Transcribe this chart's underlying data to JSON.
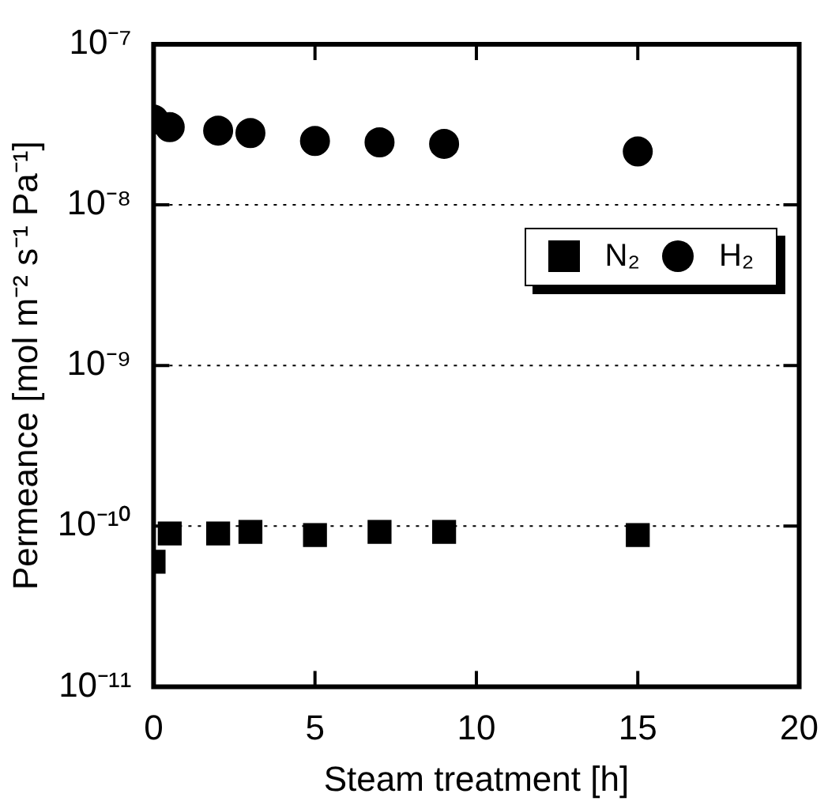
{
  "chart_data": {
    "type": "scatter",
    "xlabel": "Steam treatment [h]",
    "ylabel": "Permeance [mol m⁻² s⁻¹ Pa⁻¹]",
    "log": "y",
    "xlim": [
      0,
      20
    ],
    "xticks": [
      0,
      5,
      10,
      15,
      20
    ],
    "ylim": [
      1e-11,
      1e-07
    ],
    "yticks": [
      {
        "value": 1e-11,
        "label": "10⁻¹¹"
      },
      {
        "value": 1e-10,
        "label": "10⁻¹⁰"
      },
      {
        "value": 1e-09,
        "label": "10⁻⁹"
      },
      {
        "value": 1e-08,
        "label": "10⁻⁸"
      },
      {
        "value": 1e-07,
        "label": "10⁻⁷"
      }
    ],
    "grid": "y",
    "legend": "right",
    "x": [
      0,
      0.5,
      2,
      3,
      5,
      7,
      9,
      15
    ],
    "series": [
      {
        "name": "N₂",
        "color": "#000000",
        "marker": "square",
        "values": [
          6e-11,
          9e-11,
          9e-11,
          9.2e-11,
          8.8e-11,
          9.2e-11,
          9.2e-11,
          8.8e-11
        ]
      },
      {
        "name": "H₂",
        "color": "#000000",
        "marker": "circle",
        "values": [
          3.4e-08,
          3.05e-08,
          2.9e-08,
          2.8e-08,
          2.5e-08,
          2.45e-08,
          2.4e-08,
          2.15e-08
        ]
      }
    ]
  }
}
